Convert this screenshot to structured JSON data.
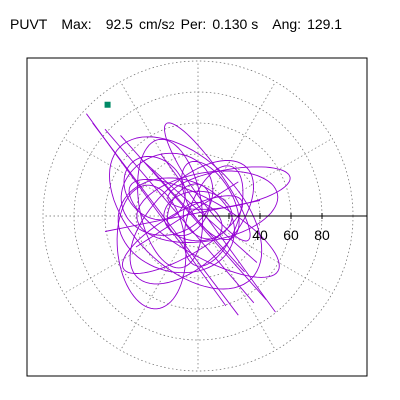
{
  "header": {
    "component": "PUVT",
    "max_label": "Max:",
    "max_value": "92.5",
    "max_unit": "cm/s",
    "max_unit_exp": "2",
    "per_label": "Per:",
    "per_value": "0.130 s",
    "ang_label": "Ang:",
    "ang_value": "129.1"
  },
  "chart_data": {
    "type": "polar-orbit",
    "max_radius": 100,
    "rings": [
      20,
      40,
      60,
      80,
      100
    ],
    "radial_ticks": [
      20,
      40,
      60,
      80
    ],
    "radial_tick_labels": [
      "40",
      "60",
      "80"
    ],
    "spoke_angles_deg": [
      0,
      30,
      60,
      90,
      120,
      150,
      180,
      210,
      240,
      270,
      300,
      330
    ],
    "peak_marker": {
      "angle_deg": 129.1,
      "radius": 92.5
    },
    "colors": {
      "trace": "#9400d3",
      "marker": "#008a66",
      "axis": "#000000",
      "grid": "#666666"
    },
    "loops": [
      {
        "cx": -8,
        "cy": 2,
        "a": 60,
        "b": 35,
        "rot": 135
      },
      {
        "cx": -4,
        "cy": -4,
        "a": 50,
        "b": 26,
        "rot": 45
      },
      {
        "cx": 6,
        "cy": 6,
        "a": 46,
        "b": 22,
        "rot": 10
      },
      {
        "cx": -14,
        "cy": -6,
        "a": 38,
        "b": 30,
        "rot": 165
      },
      {
        "cx": 4,
        "cy": -8,
        "a": 55,
        "b": 18,
        "rot": 150
      },
      {
        "cx": -18,
        "cy": 8,
        "a": 42,
        "b": 20,
        "rot": 100
      },
      {
        "cx": 10,
        "cy": 0,
        "a": 34,
        "b": 16,
        "rot": 70
      },
      {
        "cx": -20,
        "cy": 14,
        "a": 30,
        "b": 26,
        "rot": 20
      },
      {
        "cx": 8,
        "cy": 10,
        "a": 28,
        "b": 14,
        "rot": 120
      },
      {
        "cx": -10,
        "cy": -12,
        "a": 44,
        "b": 14,
        "rot": 30
      },
      {
        "cx": 0,
        "cy": 0,
        "a": 22,
        "b": 16,
        "rot": 0
      },
      {
        "cx": -6,
        "cy": 4,
        "a": 18,
        "b": 12,
        "rot": 60
      },
      {
        "cx": 3,
        "cy": -3,
        "a": 14,
        "b": 10,
        "rot": 140
      },
      {
        "cx": -30,
        "cy": -20,
        "a": 40,
        "b": 22,
        "rot": 95
      },
      {
        "cx": 20,
        "cy": 18,
        "a": 40,
        "b": 12,
        "rot": 10
      },
      {
        "cx": 6,
        "cy": 22,
        "a": 46,
        "b": 10,
        "rot": 125
      },
      {
        "cx": -28,
        "cy": 18,
        "a": 18,
        "b": 22,
        "rot": 40
      }
    ],
    "strokes": [
      [
        [
          -72,
          66
        ],
        [
          18,
          -58
        ]
      ],
      [
        [
          -68,
          60
        ],
        [
          26,
          -64
        ]
      ],
      [
        [
          -60,
          56
        ],
        [
          36,
          -56
        ]
      ],
      [
        [
          -50,
          52
        ],
        [
          44,
          -54
        ]
      ],
      [
        [
          -24,
          40
        ],
        [
          50,
          -62
        ]
      ],
      [
        [
          -30,
          30
        ],
        [
          30,
          -36
        ]
      ],
      [
        [
          -40,
          -20
        ],
        [
          26,
          22
        ]
      ],
      [
        [
          -60,
          -10
        ],
        [
          40,
          10
        ]
      ],
      [
        [
          -36,
          36
        ],
        [
          38,
          -30
        ]
      ]
    ]
  }
}
